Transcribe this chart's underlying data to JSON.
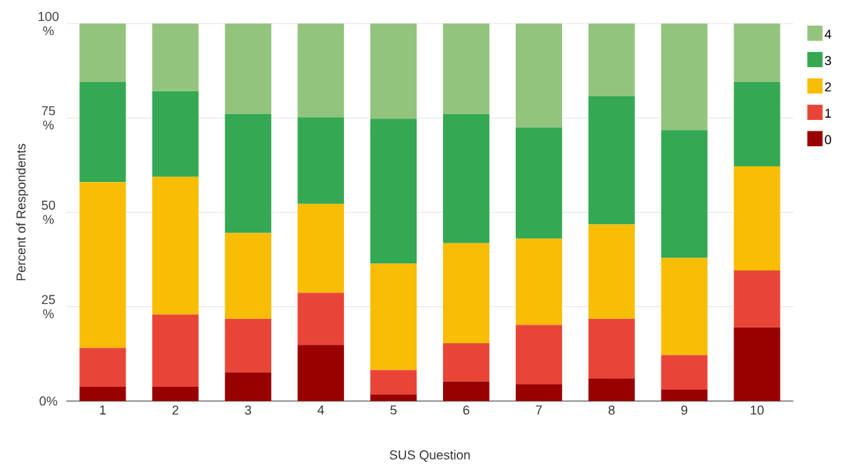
{
  "chart_data": {
    "type": "bar",
    "stacked": true,
    "xlabel": "SUS Question",
    "ylabel": "Percent of Respondents",
    "categories": [
      "1",
      "2",
      "3",
      "4",
      "5",
      "6",
      "7",
      "8",
      "9",
      "10"
    ],
    "series": [
      {
        "name": "0",
        "color": "#990000",
        "values": [
          3.8,
          3.8,
          7.6,
          14.9,
          1.8,
          5.2,
          4.5,
          6.0,
          3.0,
          19.5
        ]
      },
      {
        "name": "1",
        "color": "#e94537",
        "values": [
          10.3,
          19.1,
          14.2,
          13.8,
          6.4,
          10.1,
          15.7,
          15.8,
          9.2,
          15.1
        ]
      },
      {
        "name": "2",
        "color": "#f8bd04",
        "values": [
          43.9,
          36.5,
          22.7,
          23.5,
          28.2,
          26.5,
          22.8,
          25.0,
          25.7,
          27.6
        ]
      },
      {
        "name": "3",
        "color": "#35a853",
        "values": [
          26.5,
          22.7,
          31.6,
          23.0,
          38.4,
          34.2,
          29.5,
          33.9,
          33.9,
          22.3
        ]
      },
      {
        "name": "4",
        "color": "#93c47d",
        "values": [
          15.5,
          17.9,
          23.9,
          24.8,
          25.2,
          24.0,
          27.5,
          19.3,
          28.2,
          15.5
        ]
      }
    ],
    "ylim": [
      0,
      100
    ],
    "yticks": [
      {
        "value": 0,
        "label": "0%"
      },
      {
        "value": 25,
        "label": "25 %"
      },
      {
        "value": 50,
        "label": "50 %"
      },
      {
        "value": 75,
        "label": "75 %"
      },
      {
        "value": 100,
        "label": "100 %"
      }
    ],
    "grid": "y",
    "legend": "top right"
  }
}
